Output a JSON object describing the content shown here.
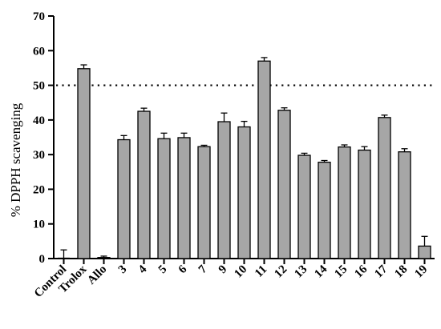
{
  "chart_data": {
    "type": "bar",
    "ylabel": "% DPPH scavenging",
    "xlabel": "",
    "ylim": [
      0,
      70
    ],
    "yticks": [
      0,
      10,
      20,
      30,
      40,
      50,
      60,
      70
    ],
    "categories": [
      "Control",
      "Trolox",
      "Allo",
      "3",
      "4",
      "5",
      "6",
      "7",
      "9",
      "10",
      "11",
      "12",
      "13",
      "14",
      "15",
      "16",
      "17",
      "18",
      "19"
    ],
    "values": [
      0,
      54.8,
      0.3,
      34.3,
      42.5,
      34.6,
      34.9,
      32.3,
      39.5,
      38.0,
      57.0,
      42.8,
      29.8,
      27.8,
      32.2,
      31.3,
      40.7,
      30.8,
      3.6
    ],
    "errors": [
      2.5,
      1.1,
      0.4,
      1.2,
      0.9,
      1.6,
      1.3,
      0.4,
      2.5,
      1.6,
      1.0,
      0.7,
      0.6,
      0.5,
      0.6,
      1.0,
      0.7,
      0.9,
      2.8
    ],
    "reference_line": 50,
    "bar_color": "#a6a6a6",
    "line_color": "#000000",
    "grid": false,
    "legend": "none"
  }
}
